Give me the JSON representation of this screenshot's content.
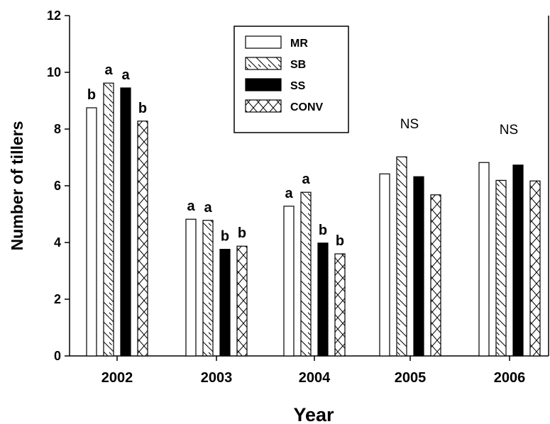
{
  "chart_data": {
    "type": "bar",
    "xlabel": "Year",
    "ylabel": "Number of tillers",
    "ylim": [
      0,
      12
    ],
    "yticks": [
      0,
      2,
      4,
      6,
      8,
      10,
      12
    ],
    "categories": [
      "2002",
      "2003",
      "2004",
      "2005",
      "2006"
    ],
    "series": [
      {
        "name": "MR",
        "pattern": "open",
        "values": [
          8.75,
          4.82,
          5.28,
          6.42,
          6.82
        ]
      },
      {
        "name": "SB",
        "pattern": "diagonal-hatch",
        "values": [
          9.62,
          4.78,
          5.77,
          7.02,
          6.19
        ]
      },
      {
        "name": "SS",
        "pattern": "solid-black",
        "values": [
          9.45,
          3.76,
          3.98,
          6.32,
          6.73
        ]
      },
      {
        "name": "CONV",
        "pattern": "cross-hatch",
        "values": [
          8.28,
          3.87,
          3.6,
          5.68,
          6.17
        ]
      }
    ],
    "annotations": [
      {
        "category": "2002",
        "labels": [
          "b",
          "a",
          "a",
          "b"
        ]
      },
      {
        "category": "2003",
        "labels": [
          "a",
          "a",
          "b",
          "b"
        ]
      },
      {
        "category": "2004",
        "labels": [
          "a",
          "a",
          "b",
          "b"
        ]
      },
      {
        "category": "2005",
        "group_label": "NS"
      },
      {
        "category": "2006",
        "group_label": "NS"
      }
    ],
    "legend": {
      "placement": "top-center",
      "entries": [
        "MR",
        "SB",
        "SS",
        "CONV"
      ]
    },
    "grid": false,
    "colors": {
      "bar_fill": "#ffffff",
      "bar_stroke": "#000000",
      "solid_fill": "#000000"
    }
  }
}
